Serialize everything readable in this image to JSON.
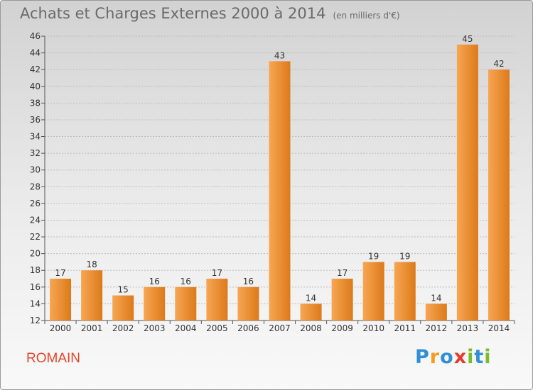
{
  "header": {
    "title": "Achats et Charges Externes 2000 à 2014",
    "subtitle": "(en milliers d'€)"
  },
  "commune": "ROMAIN",
  "logo": {
    "text": "Proxiti",
    "letters": [
      {
        "ch": "P",
        "color": "#2f8fd8"
      },
      {
        "ch": "r",
        "color": "#f39c1e"
      },
      {
        "ch": "o",
        "color": "#2f8fd8"
      },
      {
        "ch": "x",
        "color": "#e63b2e"
      },
      {
        "ch": "i",
        "color": "#7dbb2c"
      },
      {
        "ch": "t",
        "color": "#2f8fd8"
      },
      {
        "ch": "i",
        "color": "#7dbb2c"
      }
    ]
  },
  "colors": {
    "bar_light": "#f7a653",
    "bar_dark": "#dc7a1a",
    "grid": "#bdbdbd",
    "text": "#333333"
  },
  "chart_data": {
    "type": "bar",
    "categories": [
      "2000",
      "2001",
      "2002",
      "2003",
      "2004",
      "2005",
      "2006",
      "2007",
      "2008",
      "2009",
      "2010",
      "2011",
      "2012",
      "2013",
      "2014"
    ],
    "values": [
      17,
      18,
      15,
      16,
      16,
      17,
      16,
      43,
      14,
      17,
      19,
      19,
      14,
      45,
      42
    ],
    "ylim": [
      12,
      46
    ],
    "yticks": [
      12,
      14,
      16,
      18,
      20,
      22,
      24,
      26,
      28,
      30,
      32,
      34,
      36,
      38,
      40,
      42,
      44,
      46
    ],
    "grid": true,
    "data_labels": true
  }
}
